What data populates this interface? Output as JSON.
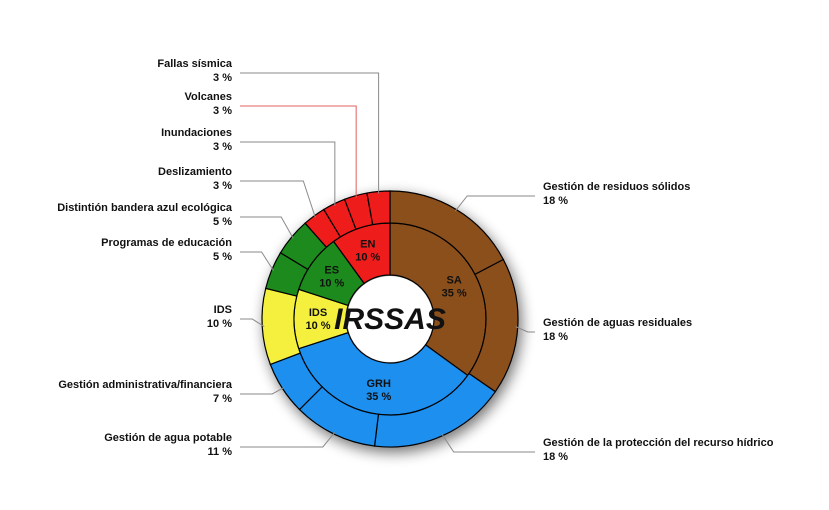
{
  "chart_data": {
    "type": "pie",
    "subtype": "sunburst-donut",
    "center_label": "IRSSAS",
    "colors": {
      "SA": "#8b4f1d",
      "GRH": "#1b8fef",
      "IDS": "#f4f03c",
      "ES": "#1e8a1e",
      "EN": "#ef1b1b"
    },
    "inner": [
      {
        "code": "SA",
        "value": 35,
        "value_label": "35 %",
        "color": "#8b4f1d"
      },
      {
        "code": "GRH",
        "value": 35,
        "value_label": "35 %",
        "color": "#1b8fef"
      },
      {
        "code": "IDS",
        "value": 10,
        "value_label": "10 %",
        "color": "#f4f03c"
      },
      {
        "code": "ES",
        "value": 10,
        "value_label": "10 %",
        "color": "#1e8a1e"
      },
      {
        "code": "EN",
        "value": 10,
        "value_label": "10 %",
        "color": "#ef1b1b"
      }
    ],
    "outer": [
      {
        "name": "Gestión de residuos sólidos",
        "value": 18,
        "value_label": "18 %",
        "group": "SA"
      },
      {
        "name": "Gestión de aguas residuales",
        "value": 18,
        "value_label": "18 %",
        "group": "SA"
      },
      {
        "name": "Gestión de la protección del recurso hídrico",
        "value": 18,
        "value_label": "18 %",
        "group": "GRH"
      },
      {
        "name": "Gestión de agua potable",
        "value": 11,
        "value_label": "11 %",
        "group": "GRH"
      },
      {
        "name": "Gestión administrativa/financiera",
        "value": 7,
        "value_label": "7 %",
        "group": "GRH"
      },
      {
        "name": "IDS",
        "value": 10,
        "value_label": "10 %",
        "group": "IDS"
      },
      {
        "name": "Programas de educación",
        "value": 5,
        "value_label": "5 %",
        "group": "ES"
      },
      {
        "name": "Distintión bandera azul ecológica",
        "value": 5,
        "value_label": "5 %",
        "group": "ES"
      },
      {
        "name": "Deslizamiento",
        "value": 3,
        "value_label": "3 %",
        "group": "EN"
      },
      {
        "name": "Inundaciones",
        "value": 3,
        "value_label": "3 %",
        "group": "EN"
      },
      {
        "name": "Volcanes",
        "value": 3,
        "value_label": "3 %",
        "group": "EN"
      },
      {
        "name": "Fallas sísmica",
        "value": 3,
        "value_label": "3 %",
        "group": "EN"
      }
    ]
  }
}
